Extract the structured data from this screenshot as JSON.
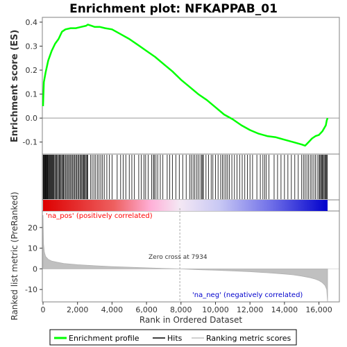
{
  "chart_data": {
    "type": "line",
    "title": "Enrichment plot: NFKAPPAB_01",
    "xlabel": "Rank in Ordered Dataset",
    "ylabel_top": "Enrichment score (ES)",
    "ylabel_bottom": "Ranked list metric (PreRanked)",
    "xlim": [
      0,
      16500
    ],
    "x_ticks": [
      0,
      2000,
      4000,
      6000,
      8000,
      10000,
      12000,
      14000,
      16000
    ],
    "x_tick_labels": [
      "0",
      "2,000",
      "4,000",
      "6,000",
      "8,000",
      "10,000",
      "12,000",
      "14,000",
      "16,000"
    ],
    "es_ylim": [
      -0.15,
      0.42
    ],
    "es_ticks": [
      -0.1,
      0.0,
      0.1,
      0.2,
      0.3,
      0.4
    ],
    "es_tick_labels": [
      "-0.1",
      "0.0",
      "0.1",
      "0.2",
      "0.3",
      "0.4"
    ],
    "metric_ylim": [
      -16,
      28
    ],
    "metric_ticks": [
      -10,
      0,
      10,
      20
    ],
    "metric_tick_labels": [
      "-10",
      "0",
      "10",
      "20"
    ],
    "series": [
      {
        "name": "Enrichment profile",
        "color": "#00ff00",
        "x": [
          0,
          50,
          150,
          300,
          500,
          700,
          900,
          1100,
          1300,
          1600,
          1900,
          2200,
          2500,
          2600,
          2800,
          3000,
          3300,
          3600,
          4000,
          4500,
          5000,
          5500,
          6000,
          6500,
          7000,
          7500,
          8000,
          8500,
          9000,
          9500,
          10000,
          10500,
          11000,
          11500,
          12000,
          12500,
          13000,
          13500,
          14000,
          14500,
          15000,
          15200,
          15400,
          15600,
          15800,
          16000,
          16200,
          16400,
          16450,
          16500
        ],
        "y": [
          0.05,
          0.15,
          0.19,
          0.24,
          0.28,
          0.31,
          0.33,
          0.36,
          0.37,
          0.375,
          0.375,
          0.38,
          0.385,
          0.39,
          0.385,
          0.38,
          0.38,
          0.375,
          0.37,
          0.35,
          0.33,
          0.305,
          0.28,
          0.255,
          0.225,
          0.195,
          0.16,
          0.13,
          0.1,
          0.075,
          0.045,
          0.015,
          -0.005,
          -0.03,
          -0.05,
          -0.065,
          -0.075,
          -0.08,
          -0.09,
          -0.1,
          -0.11,
          -0.115,
          -0.1,
          -0.085,
          -0.075,
          -0.07,
          -0.055,
          -0.03,
          -0.01,
          0.0
        ]
      },
      {
        "name": "Ranked list metric",
        "color": "#c0c0c0",
        "x": [
          0,
          30,
          80,
          150,
          300,
          500,
          800,
          1200,
          2000,
          3000,
          4000,
          5000,
          6000,
          7000,
          7934,
          9000,
          10000,
          11000,
          12000,
          13000,
          14000,
          14500,
          15000,
          15500,
          15800,
          16000,
          16200,
          16350,
          16450,
          16500
        ],
        "y": [
          26,
          12,
          8,
          6,
          4.6,
          3.8,
          3.2,
          2.6,
          2.0,
          1.5,
          1.1,
          0.8,
          0.5,
          0.2,
          0.0,
          -0.4,
          -0.7,
          -1.0,
          -1.4,
          -1.9,
          -2.5,
          -2.9,
          -3.5,
          -4.3,
          -5.0,
          -5.7,
          -6.7,
          -8.0,
          -10.0,
          -16.0
        ]
      }
    ],
    "hits": [
      10,
      40,
      70,
      100,
      130,
      160,
      190,
      220,
      250,
      280,
      320,
      360,
      400,
      440,
      480,
      520,
      560,
      600,
      640,
      690,
      740,
      790,
      840,
      890,
      940,
      990,
      1040,
      1090,
      1140,
      1190,
      1240,
      1300,
      1360,
      1420,
      1480,
      1540,
      1600,
      1660,
      1720,
      1780,
      1840,
      1900,
      1960,
      2020,
      2080,
      2140,
      2200,
      2250,
      2300,
      2350,
      2400,
      2450,
      2500,
      2550,
      2600,
      2750,
      2850,
      2950,
      3050,
      3150,
      3250,
      3350,
      3450,
      3550,
      3700,
      3850,
      4000,
      4300,
      4500,
      4650,
      4800,
      5000,
      5150,
      5300,
      5550,
      5700,
      5850,
      5950,
      6100,
      6300,
      6400,
      6450,
      6550,
      6650,
      6800,
      6950,
      7200,
      7350,
      7500,
      7700,
      7900,
      8100,
      8300,
      8500,
      8600,
      8700,
      8800,
      8900,
      9000,
      9100,
      9200,
      9250,
      9300,
      9450,
      9600,
      9750,
      9850,
      10000,
      10150,
      10300,
      10400,
      10500,
      10600,
      10700,
      10800,
      10950,
      11100,
      11250,
      11400,
      11550,
      11700,
      11850,
      12000,
      12150,
      12400,
      12600,
      12750,
      12850,
      12950,
      13100,
      13400,
      13600,
      13800,
      14000,
      14200,
      14400,
      14600,
      14800,
      15000,
      15100,
      15200,
      15300,
      15400,
      15500,
      15600,
      15700,
      15800,
      15900,
      16000,
      16050,
      16100,
      16150,
      16200,
      16250,
      16300,
      16350,
      16400,
      16450,
      16480
    ],
    "zero_cross": 7934,
    "annotations": {
      "pos_label": "'na_pos' (positively correlated)",
      "neg_label": "'na_neg' (negatively correlated)",
      "zero_cross_label": "Zero cross at 7934"
    },
    "legend": {
      "position": "bottom",
      "items": [
        {
          "label": "Enrichment profile",
          "color": "#00ff00"
        },
        {
          "label": "Hits",
          "color": "#000000"
        },
        {
          "label": "Ranking metric scores",
          "color": "#c0c0c0"
        }
      ]
    },
    "colors": {
      "pos_label": "#ff0000",
      "neg_label": "#0000cc",
      "bar_pos": "#dd0000",
      "bar_neg": "#0000dd"
    }
  }
}
